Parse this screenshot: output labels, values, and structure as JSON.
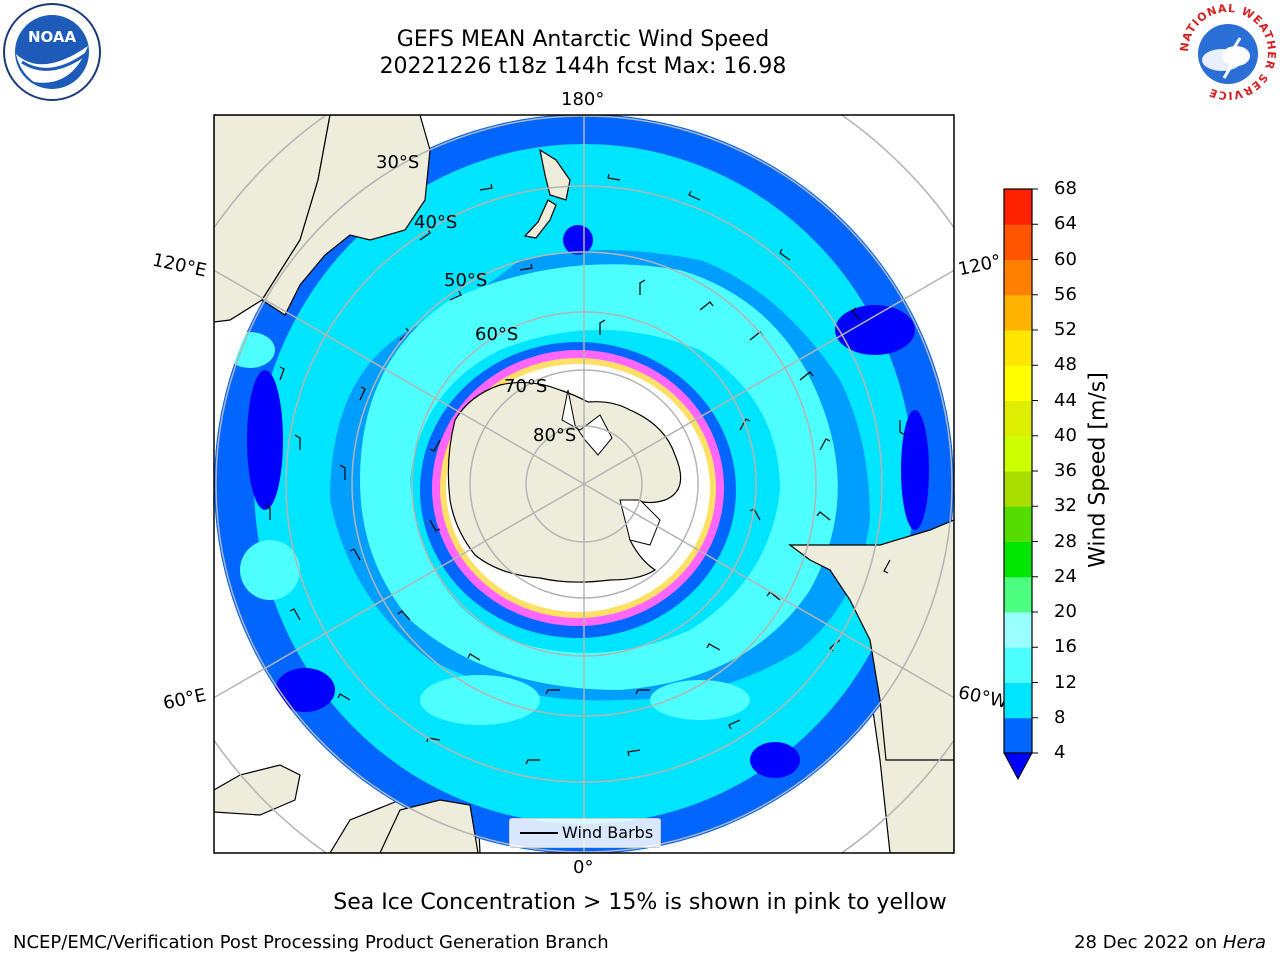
{
  "title": {
    "line1": "GEFS MEAN Antarctic Wind Speed",
    "line2": "20221226 t18z 144h fcst   Max: 16.98"
  },
  "map": {
    "projection": "south-polar-stereographic",
    "longitude_labels": [
      "180°",
      "120°E",
      "120°",
      "60°E",
      "60°W",
      "0°"
    ],
    "latitude_labels": [
      "30°S",
      "40°S",
      "50°S",
      "60°S",
      "70°S",
      "80°S"
    ],
    "legend_label": "Wind Barbs",
    "colors": {
      "land": "#eeecda",
      "ocean_min": "#0000ff",
      "sea_ice": "#ff66ff",
      "gridline": "#b4b4b4"
    }
  },
  "colorbar": {
    "label": "Wind Speed [m/s]",
    "ticks": [
      "4",
      "8",
      "12",
      "16",
      "20",
      "24",
      "28",
      "32",
      "36",
      "40",
      "44",
      "48",
      "52",
      "56",
      "60",
      "64",
      "68"
    ],
    "colors": [
      "#0066ff",
      "#00e5ff",
      "#4dffff",
      "#99ffff",
      "#4dff80",
      "#00e600",
      "#55dd00",
      "#aadd00",
      "#ccff00",
      "#ddee00",
      "#ffff00",
      "#ffe600",
      "#ffb300",
      "#ff8000",
      "#ff5500",
      "#ff2200",
      "#ff0000"
    ]
  },
  "subtitle": "Sea Ice Concentration > 15% is shown in pink to yellow",
  "footer": {
    "left": "NCEP/EMC/Verification Post Processing Product Generation Branch",
    "right_date": "28 Dec 2022 on ",
    "right_machine": "Hera"
  },
  "logos": {
    "noaa": "NOAA",
    "nws_ring": "NATIONAL WEATHER SERVICE"
  }
}
